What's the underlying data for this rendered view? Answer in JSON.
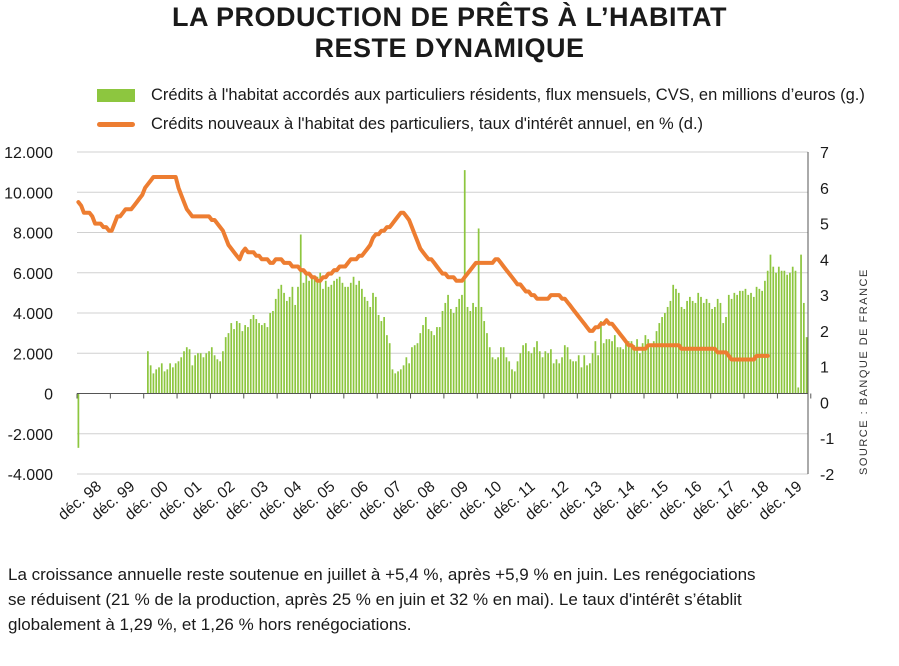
{
  "title": {
    "line1": "LA PRODUCTION DE PRÊTS À L’HABITAT",
    "line2": "RESTE DYNAMIQUE"
  },
  "source": "SOURCE : BANQUE DE FRANCE",
  "caption": {
    "line1": "La croissance annuelle reste soutenue en juillet à +5,4 %, après +5,9 % en juin. Les renégociations",
    "line2": "se réduisent (21 % de la production, après 25 % en juin et 32 % en mai). Le taux d'intérêt s’établit",
    "line3": "globalement à 1,29 %, et 1,26 % hors renégociations."
  },
  "colors": {
    "bars": "#8dc63f",
    "line": "#ed7d31",
    "grid": "#d0d0d0",
    "text": "#1a1a1a"
  },
  "chart_data": {
    "type": "bar+line",
    "grid": true,
    "legend_position": "top",
    "x_labels": [
      "déc. 98",
      "déc. 99",
      "déc. 00",
      "déc. 01",
      "déc. 02",
      "déc. 03",
      "déc. 04",
      "déc. 05",
      "déc. 06",
      "déc. 07",
      "déc. 08",
      "déc. 09",
      "déc. 10",
      "déc. 11",
      "déc. 12",
      "déc. 13",
      "déc. 14",
      "déc. 15",
      "déc. 16",
      "déc. 17",
      "déc. 18",
      "déc. 19"
    ],
    "y_left": {
      "min": -4000,
      "max": 12000,
      "ticks": [
        "-4.000",
        "-2.000",
        "0",
        "2.000",
        "4.000",
        "6.000",
        "8.000",
        "10.000",
        "12.000"
      ],
      "tick_values": [
        -4000,
        -2000,
        0,
        2000,
        4000,
        6000,
        8000,
        10000,
        12000
      ]
    },
    "y_right": {
      "min": -2,
      "max": 7,
      "ticks": [
        "-2",
        "-1",
        "0",
        "1",
        "2",
        "3",
        "4",
        "5",
        "6",
        "7"
      ],
      "tick_values": [
        -2,
        -1,
        0,
        1,
        2,
        3,
        4,
        5,
        6,
        7
      ]
    },
    "series": [
      {
        "name": "Crédits à l'habitat accordés aux particuliers résidents, flux mensuels, CVS, en millions d’euros (g.)",
        "type": "bar",
        "axis": "left",
        "start": "1998-12",
        "step": "month",
        "values": [
          -2700,
          null,
          null,
          null,
          null,
          null,
          null,
          null,
          null,
          null,
          null,
          null,
          null,
          null,
          null,
          null,
          null,
          null,
          null,
          null,
          null,
          null,
          null,
          null,
          null,
          2100,
          1400,
          1000,
          1200,
          1300,
          1500,
          1100,
          1200,
          1500,
          1300,
          1500,
          1600,
          1800,
          2100,
          2300,
          2200,
          1400,
          1900,
          2000,
          2000,
          1800,
          2000,
          2100,
          2300,
          1900,
          1700,
          1600,
          2100,
          2800,
          3000,
          3500,
          3200,
          3600,
          3500,
          3100,
          3400,
          3300,
          3700,
          3900,
          3700,
          3500,
          3400,
          3500,
          3300,
          4000,
          4100,
          4700,
          5200,
          5400,
          5000,
          4600,
          4800,
          5300,
          4400,
          5300,
          7900,
          5500,
          5900,
          5600,
          5700,
          5700,
          5800,
          6000,
          5200,
          5600,
          5300,
          5400,
          5600,
          5700,
          5800,
          5500,
          5300,
          5300,
          5500,
          5800,
          5400,
          5600,
          5200,
          4800,
          4600,
          4300,
          5000,
          4800,
          3900,
          3600,
          3800,
          2900,
          2500,
          1200,
          1000,
          1100,
          1200,
          1400,
          1800,
          1500,
          2300,
          2400,
          2500,
          3000,
          3400,
          3800,
          3200,
          3100,
          2900,
          3300,
          3300,
          4100,
          4500,
          4900,
          4200,
          4000,
          4300,
          4700,
          4900,
          11100,
          4300,
          4100,
          4500,
          4300,
          8200,
          4300,
          3600,
          3000,
          2300,
          1800,
          1700,
          1800,
          2300,
          2300,
          1800,
          1600,
          1200,
          1100,
          1600,
          2000,
          2400,
          2500,
          2100,
          2000,
          2300,
          2600,
          2100,
          1800,
          2100,
          2000,
          2200,
          1500,
          1700,
          1500,
          1800,
          2400,
          2300,
          1700,
          1600,
          1600,
          1900,
          1300,
          1900,
          1400,
          1500,
          2000,
          2600,
          1900,
          3600,
          2500,
          2700,
          2700,
          2600,
          2900,
          2300,
          2300,
          2200,
          2500,
          2600,
          2600,
          2400,
          2700,
          2000,
          2500,
          2900,
          2700,
          2300,
          2600,
          3100,
          3500,
          3800,
          4000,
          4300,
          4600,
          5400,
          5200,
          5000,
          4300,
          4200,
          4600,
          4800,
          4600,
          4500,
          5000,
          4800,
          4500,
          4700,
          4500,
          4200,
          4300,
          4700,
          4500,
          3500,
          3800,
          4900,
          4700,
          5000,
          4900,
          5100,
          5100,
          5200,
          4900,
          5000,
          4800,
          5300,
          5200,
          5100,
          5600,
          6100,
          6900,
          6300,
          6000,
          6300,
          6100,
          6100,
          5900,
          6000,
          6300,
          6100,
          300,
          6900,
          4500,
          2800
        ]
      },
      {
        "name": "Crédits nouveaux à l'habitat des particuliers, taux d'intérêt annuel, en % (d.)",
        "type": "line",
        "axis": "right",
        "start": "1998-12",
        "step": "month",
        "values": [
          5.6,
          5.5,
          5.3,
          5.3,
          5.3,
          5.2,
          5.0,
          5.0,
          5.0,
          4.9,
          4.9,
          4.8,
          4.8,
          5.0,
          5.2,
          5.2,
          5.3,
          5.4,
          5.4,
          5.4,
          5.5,
          5.6,
          5.7,
          5.8,
          6.0,
          6.1,
          6.2,
          6.3,
          6.3,
          6.3,
          6.3,
          6.3,
          6.3,
          6.3,
          6.3,
          6.3,
          6.0,
          5.8,
          5.6,
          5.4,
          5.3,
          5.2,
          5.2,
          5.2,
          5.2,
          5.2,
          5.2,
          5.2,
          5.1,
          5.1,
          5.0,
          4.9,
          4.8,
          4.6,
          4.4,
          4.3,
          4.2,
          4.1,
          4.0,
          4.2,
          4.3,
          4.2,
          4.2,
          4.2,
          4.1,
          4.1,
          4.0,
          4.0,
          4.0,
          3.9,
          3.9,
          4.0,
          4.0,
          4.0,
          3.9,
          3.9,
          3.9,
          3.8,
          3.8,
          3.8,
          3.7,
          3.7,
          3.6,
          3.6,
          3.5,
          3.5,
          3.4,
          3.4,
          3.5,
          3.5,
          3.6,
          3.6,
          3.7,
          3.7,
          3.8,
          3.8,
          3.8,
          3.9,
          4.0,
          4.0,
          4.0,
          4.1,
          4.1,
          4.2,
          4.3,
          4.4,
          4.6,
          4.7,
          4.7,
          4.8,
          4.8,
          4.9,
          4.9,
          5.0,
          5.1,
          5.2,
          5.3,
          5.3,
          5.2,
          5.1,
          4.9,
          4.7,
          4.5,
          4.3,
          4.2,
          4.1,
          4.0,
          4.0,
          3.9,
          3.8,
          3.7,
          3.6,
          3.6,
          3.5,
          3.5,
          3.5,
          3.4,
          3.4,
          3.4,
          3.5,
          3.6,
          3.7,
          3.8,
          3.9,
          3.9,
          3.9,
          3.9,
          3.9,
          3.9,
          3.9,
          4.0,
          4.0,
          3.9,
          3.8,
          3.7,
          3.6,
          3.5,
          3.4,
          3.3,
          3.3,
          3.2,
          3.1,
          3.1,
          3.0,
          3.0,
          2.9,
          2.9,
          2.9,
          2.9,
          2.9,
          3.0,
          3.0,
          3.0,
          3.0,
          2.9,
          2.9,
          2.8,
          2.7,
          2.6,
          2.5,
          2.4,
          2.3,
          2.2,
          2.1,
          2.0,
          2.0,
          2.1,
          2.1,
          2.2,
          2.2,
          2.3,
          2.2,
          2.2,
          2.1,
          2.0,
          1.9,
          1.8,
          1.7,
          1.6,
          1.6,
          1.5,
          1.5,
          1.5,
          1.5,
          1.5,
          1.6,
          1.6,
          1.6,
          1.6,
          1.6,
          1.6,
          1.6,
          1.6,
          1.6,
          1.6,
          1.6,
          1.6,
          1.5,
          1.5,
          1.5,
          1.5,
          1.5,
          1.5,
          1.5,
          1.5,
          1.5,
          1.5,
          1.5,
          1.5,
          1.5,
          1.4,
          1.4,
          1.4,
          1.4,
          1.3,
          1.2,
          1.2,
          1.2,
          1.2,
          1.2,
          1.2,
          1.2,
          1.2,
          1.2,
          1.3,
          1.3,
          1.3,
          1.3,
          1.3
        ]
      }
    ]
  }
}
